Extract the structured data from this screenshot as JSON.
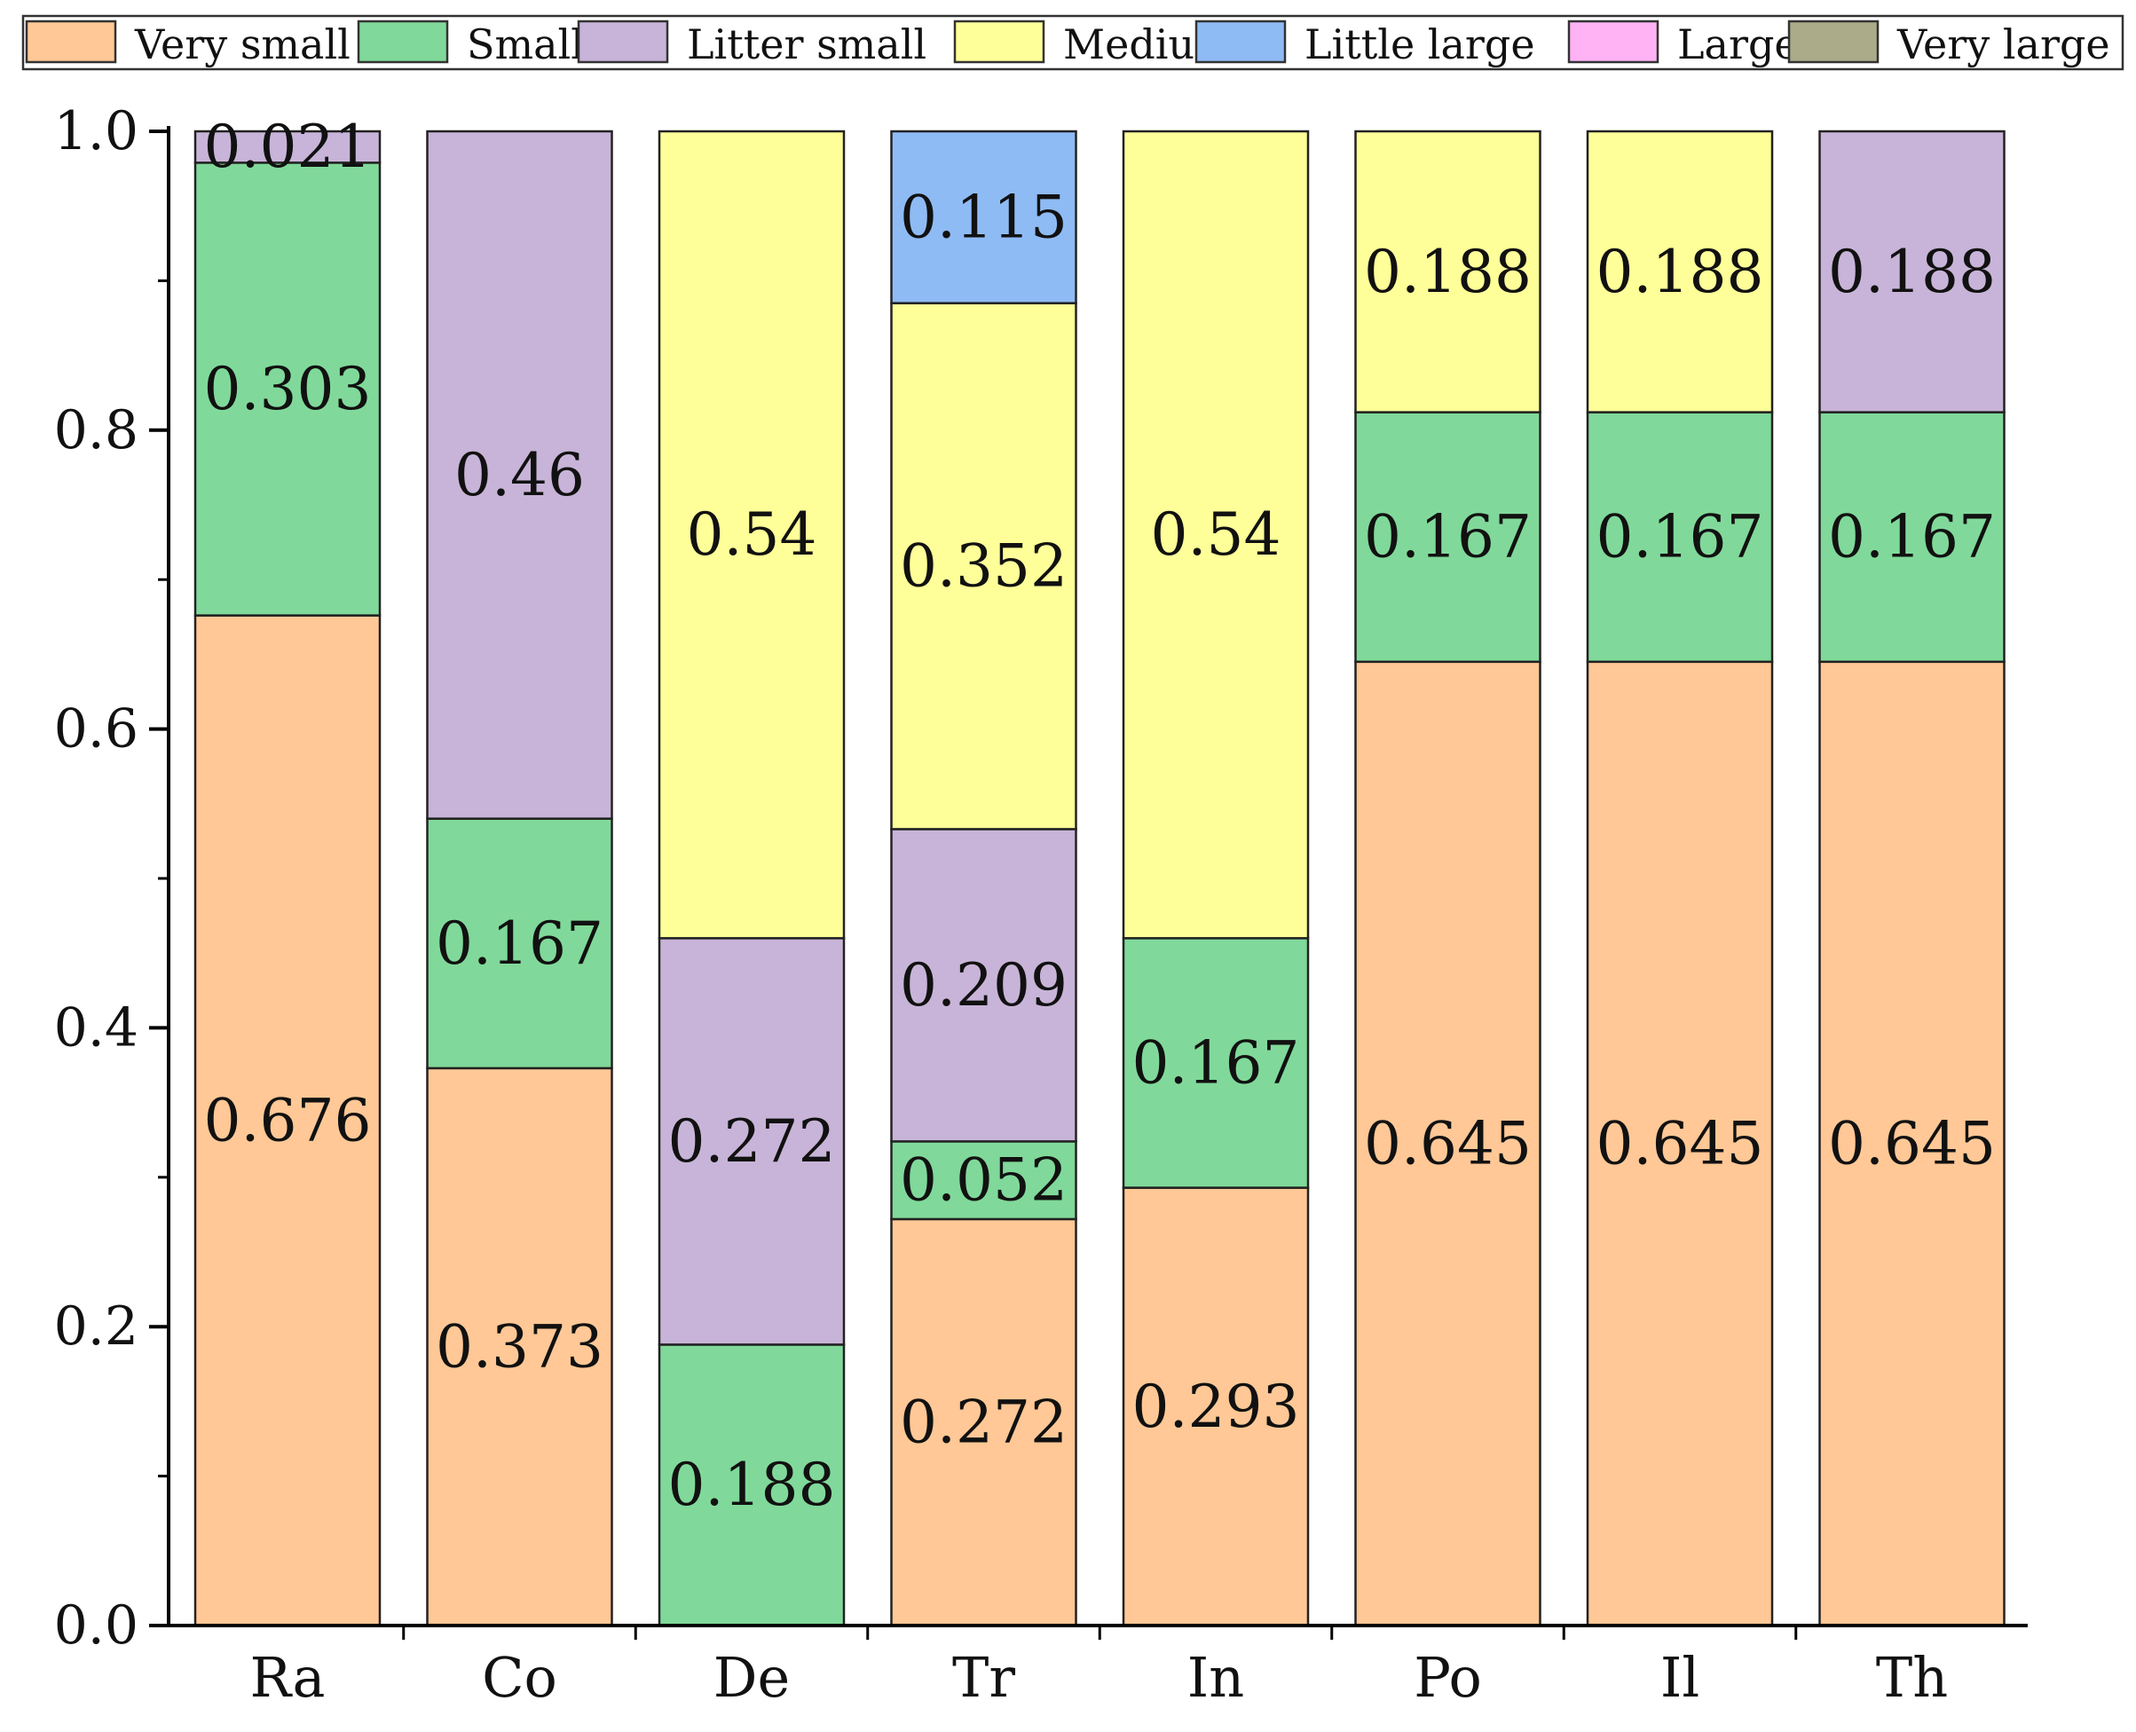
{
  "chart_data": {
    "type": "bar",
    "stacked": true,
    "title": "",
    "xlabel": "",
    "ylabel": "",
    "ylim": [
      0,
      1.0
    ],
    "yticks": [
      "0.0",
      "0.2",
      "0.4",
      "0.6",
      "0.8",
      "1.0"
    ],
    "ytick_values": [
      0,
      0.2,
      0.4,
      0.6,
      0.8,
      1.0
    ],
    "legend_position": "top",
    "categories": [
      "Ra",
      "Co",
      "De",
      "Tr",
      "In",
      "Po",
      "Il",
      "Th"
    ],
    "series": [
      {
        "name": "Very small",
        "color": "#FFC896",
        "values": [
          0.676,
          0.373,
          0,
          0.272,
          0.293,
          0.645,
          0.645,
          0.645
        ],
        "labels": [
          "0.676",
          "0.373",
          "",
          "0.272",
          "0.293",
          "0.645",
          "0.645",
          "0.645"
        ]
      },
      {
        "name": "Small",
        "color": "#80D99A",
        "values": [
          0.303,
          0.167,
          0.188,
          0.052,
          0.167,
          0.167,
          0.167,
          0.167
        ],
        "labels": [
          "0.303",
          "0.167",
          "0.188",
          "0.052",
          "0.167",
          "0.167",
          "0.167",
          "0.167"
        ]
      },
      {
        "name": "Litter small",
        "color": "#C8B4D8",
        "values": [
          0.021,
          0.46,
          0.272,
          0.209,
          0,
          0,
          0,
          0.188
        ],
        "labels": [
          "0.021",
          "0.46",
          "0.272",
          "0.209",
          "",
          "",
          "",
          "0.188"
        ]
      },
      {
        "name": "Medium",
        "color": "#FFFF99",
        "values": [
          0,
          0,
          0.54,
          0.352,
          0.54,
          0.188,
          0.188,
          0
        ],
        "labels": [
          "",
          "",
          "0.54",
          "0.352",
          "0.54",
          "0.188",
          "0.188",
          ""
        ]
      },
      {
        "name": "Little large",
        "color": "#8FBBF5",
        "values": [
          0,
          0,
          0,
          0.115,
          0,
          0,
          0,
          0
        ],
        "labels": [
          "",
          "",
          "",
          "0.115",
          "",
          "",
          "",
          ""
        ]
      },
      {
        "name": "Large",
        "color": "#FFB3F5",
        "values": [
          0,
          0,
          0,
          0,
          0,
          0,
          0,
          0
        ],
        "labels": [
          "",
          "",
          "",
          "",
          "",
          "",
          "",
          ""
        ]
      },
      {
        "name": "Very large",
        "color": "#ABAB8A",
        "values": [
          0,
          0,
          0,
          0,
          0,
          0,
          0,
          0
        ],
        "labels": [
          "",
          "",
          "",
          "",
          "",
          "",
          "",
          ""
        ]
      }
    ]
  }
}
